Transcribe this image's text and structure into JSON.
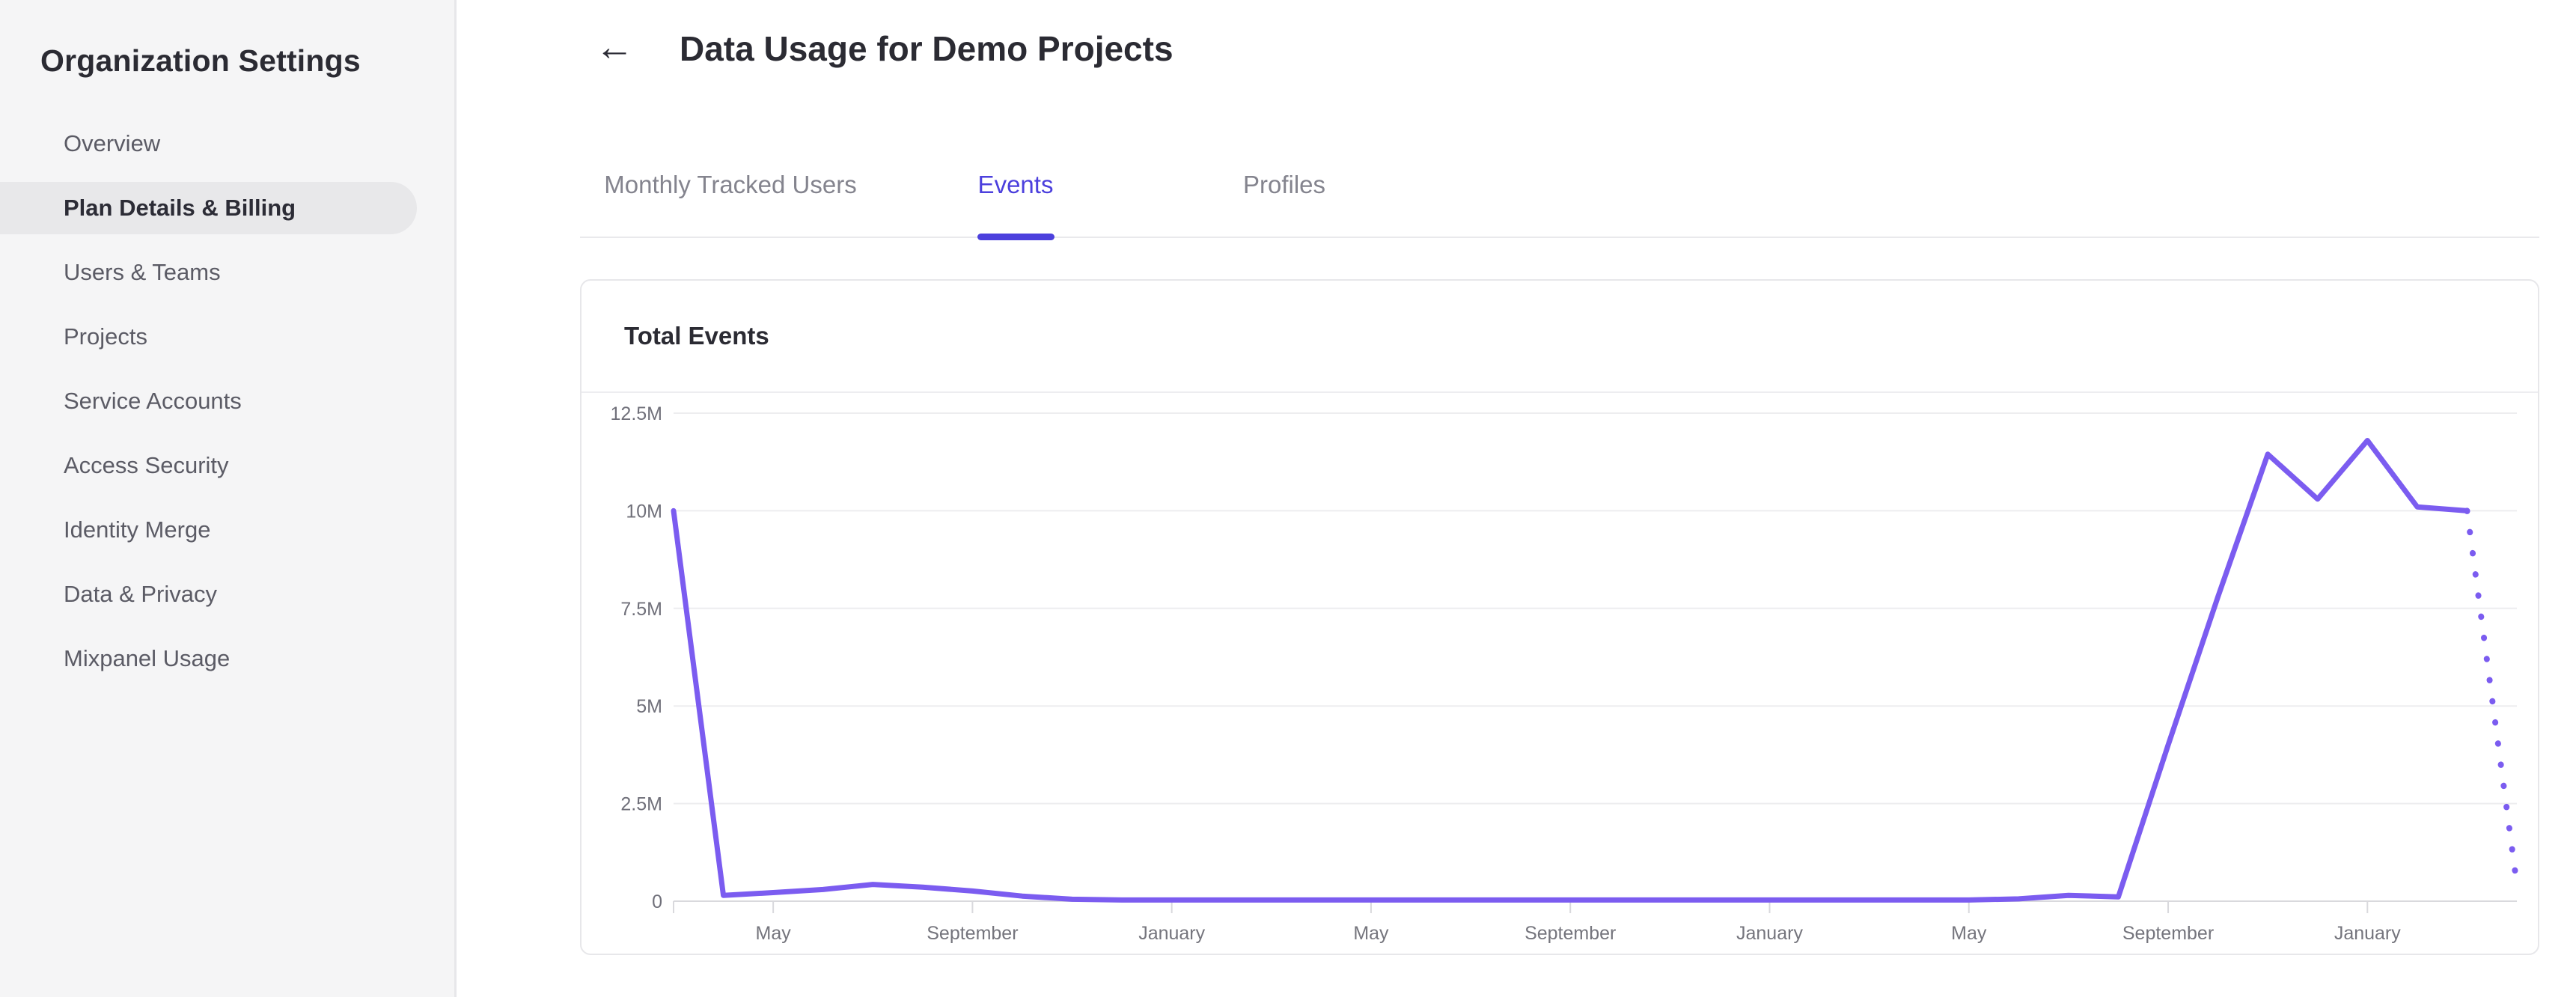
{
  "sidebar": {
    "title": "Organization Settings",
    "items": [
      {
        "label": "Overview",
        "active": false
      },
      {
        "label": "Plan Details & Billing",
        "active": true
      },
      {
        "label": "Users & Teams",
        "active": false
      },
      {
        "label": "Projects",
        "active": false
      },
      {
        "label": "Service Accounts",
        "active": false
      },
      {
        "label": "Access Security",
        "active": false
      },
      {
        "label": "Identity Merge",
        "active": false
      },
      {
        "label": "Data & Privacy",
        "active": false
      },
      {
        "label": "Mixpanel Usage",
        "active": false
      }
    ]
  },
  "header": {
    "back_icon": "←",
    "title": "Data Usage for Demo Projects"
  },
  "tabs": [
    {
      "label": "Monthly Tracked Users",
      "active": false
    },
    {
      "label": "Events",
      "active": true
    },
    {
      "label": "Profiles",
      "active": false
    }
  ],
  "card": {
    "title": "Total Events"
  },
  "colors": {
    "accent_tab": "#4c40dd",
    "chart_line": "#7b5cf0",
    "sidebar_bg": "#f5f5f6",
    "sidebar_active_pill": "#e8e8ea",
    "grid_line": "#ededef",
    "axis_line": "#d9d9dd",
    "axis_text": "#75757d",
    "dark_text": "#2b2b33"
  },
  "chart_data": {
    "type": "line",
    "title": "Total Events",
    "legend": false,
    "grid": "horizontal",
    "line_color": "#7b5cf0",
    "projection_style": "dotted-last-segment",
    "y_axis": {
      "min": 0,
      "max": 12500000,
      "tick_labels": [
        "12.5M",
        "10M",
        "7.5M",
        "5M",
        "2.5M",
        "0"
      ],
      "tick_values": [
        12500000,
        10000000,
        7500000,
        5000000,
        2500000,
        0
      ]
    },
    "x_axis": {
      "tick_labels": [
        "May",
        "September",
        "January",
        "May",
        "September",
        "January",
        "May",
        "September",
        "January"
      ],
      "tick_point_indices": [
        2,
        6,
        10,
        14,
        18,
        22,
        26,
        30,
        34
      ]
    },
    "series": [
      {
        "name": "Total Events",
        "months": [
          "March",
          "April",
          "May",
          "June",
          "July",
          "August",
          "September",
          "October",
          "November",
          "December",
          "January",
          "February",
          "March",
          "April",
          "May",
          "June",
          "July",
          "August",
          "September",
          "October",
          "November",
          "December",
          "January",
          "February",
          "March",
          "April",
          "May",
          "June",
          "July",
          "August",
          "September",
          "October",
          "November",
          "December",
          "January",
          "February",
          "March",
          "April"
        ],
        "values": [
          10000000,
          150000,
          220000,
          300000,
          430000,
          360000,
          260000,
          130000,
          50000,
          30000,
          30000,
          30000,
          30000,
          30000,
          30000,
          30000,
          30000,
          30000,
          30000,
          30000,
          30000,
          30000,
          30000,
          30000,
          30000,
          30000,
          30000,
          60000,
          150000,
          110000,
          4000000,
          7800000,
          11450000,
          10300000,
          11800000,
          10100000,
          10000000,
          420000
        ],
        "last_point_projected": true
      }
    ]
  }
}
